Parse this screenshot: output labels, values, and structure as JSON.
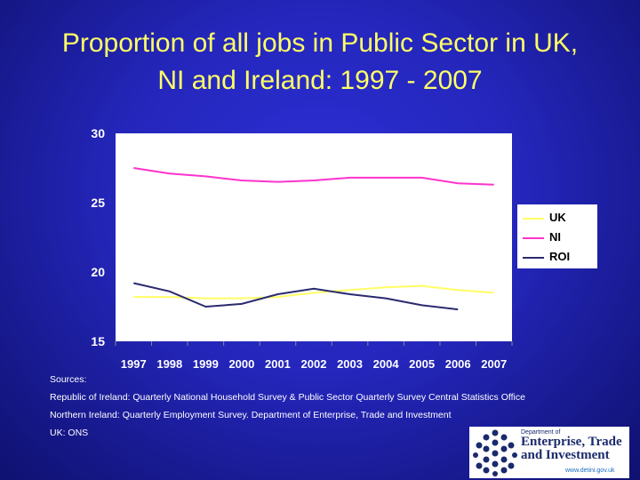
{
  "title_line1": "Proportion of all jobs in Public Sector in UK,",
  "title_line2": "NI and Ireland: 1997 - 2007",
  "colors": {
    "uk": "#ffff66",
    "ni": "#ff33cc",
    "roi": "#2a2a70",
    "plot_bg": "#ffffff",
    "text": "#ffffff"
  },
  "chart_data": {
    "type": "line",
    "title": "Proportion of all jobs in Public Sector in UK, NI and Ireland: 1997 - 2007",
    "xlabel": "",
    "ylabel": "",
    "categories": [
      "1997",
      "1998",
      "1999",
      "2000",
      "2001",
      "2002",
      "2003",
      "2004",
      "2005",
      "2006",
      "2007"
    ],
    "ylim": [
      15,
      30
    ],
    "yticks": [
      15,
      20,
      25,
      30
    ],
    "grid": false,
    "legend": "right",
    "series": [
      {
        "name": "UK",
        "color": "#ffff66",
        "values": [
          18.2,
          18.2,
          18.1,
          18.1,
          18.2,
          18.5,
          18.7,
          18.9,
          19.0,
          18.7,
          18.5
        ]
      },
      {
        "name": "NI",
        "color": "#ff33cc",
        "values": [
          27.5,
          27.1,
          26.9,
          26.6,
          26.5,
          26.6,
          26.8,
          26.8,
          26.8,
          26.4,
          26.3
        ]
      },
      {
        "name": "ROI",
        "color": "#2a2a70",
        "values": [
          19.2,
          18.6,
          17.5,
          17.7,
          18.4,
          18.8,
          18.4,
          18.1,
          17.6,
          17.3,
          null
        ]
      }
    ]
  },
  "sources": {
    "heading": "Sources:",
    "roi": "Republic of Ireland:  Quarterly National Household Survey & Public Sector Quarterly Survey  Central Statistics Office",
    "ni": "Northern Ireland: Quarterly Employment Survey. Department of Enterprise, Trade and Investment",
    "uk": "UK: ONS"
  },
  "logo": {
    "small": "Department of",
    "line1": "Enterprise, Trade",
    "line2": "and Investment",
    "url": "www.detini.gov.uk"
  }
}
